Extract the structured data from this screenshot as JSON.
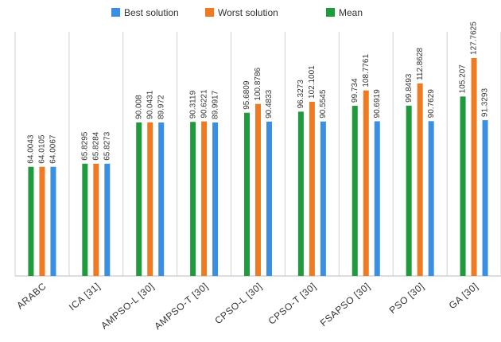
{
  "chart_data": {
    "type": "bar",
    "categories": [
      "ARABC",
      "ICA [31]",
      "AMPSO-L [30]",
      "AMPSO-T [30]",
      "CPSO-L [30]",
      "CPSO-T [30]",
      "FSAPSO [30]",
      "PSO [30]",
      "GA [30]"
    ],
    "series": [
      {
        "name": "Best solution",
        "color": "#3b8fe3",
        "values": [
          64.0067,
          65.8273,
          89.972,
          89.9917,
          90.4833,
          90.5545,
          90.6919,
          90.7629,
          91.3293
        ]
      },
      {
        "name": "Worst solution",
        "color": "#f07a22",
        "values": [
          64.0105,
          65.8284,
          90.0431,
          90.6221,
          100.8786,
          102.1001,
          108.7761,
          112.8628,
          127.7625
        ]
      },
      {
        "name": "Mean",
        "color": "#1f9a3c",
        "values": [
          64.0043,
          65.8295,
          90.008,
          90.3119,
          95.6809,
          96.3273,
          99.734,
          99.8493,
          105.207
        ]
      }
    ],
    "legend": "top"
  }
}
